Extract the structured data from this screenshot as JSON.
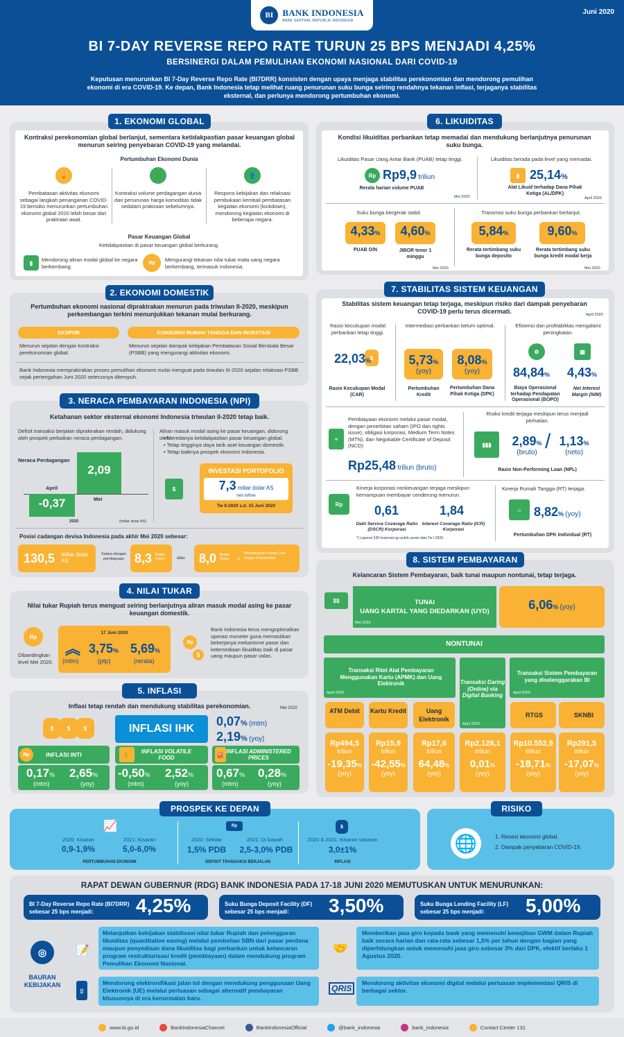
{
  "header": {
    "logo": "BANK INDONESIA",
    "logo_sub": "BANK SENTRAL REPUBLIK INDONESIA",
    "date": "Juni 2020",
    "title": "BI 7-DAY REVERSE REPO RATE TURUN 25 BPS MENJADI 4,25%",
    "subtitle": "BERSINERGI DALAM PEMULIHAN EKONOMI NASIONAL DARI COVID-19",
    "desc": "Keputusan menurunkan BI 7-Day Reverse Repo Rate (BI7DRR) konsisten dengan upaya menjaga stabilitas perekonomian dan mendorong pemulihan ekonomi di era COVID-19. Ke depan, Bank Indonesia tetap melihat ruang penurunan suku bunga seiring rendahnya tekanan inflasi, terjaganya stabilitas eksternal, dan perlunya mendorong pertumbuhan ekonomi."
  },
  "s1": {
    "title": "1. EKONOMI GLOBAL",
    "intro": "Kontraksi perekonomian global berlanjut, sementara ketidakpastian pasar keuangan global menurun seiring penyebaran COVID-19 yang melandai.",
    "sub1": "Pertumbuhan Ekonomi Dunia",
    "c1": "Pembatasan aktivitas ekonomi sebagai langkah penanganan COVID-19 berisiko menurunkan pertumbuhan ekonomi global 2020 lebih besar dari prakiraan awal.",
    "c2": "Kontraksi volume perdagangan dunia dan penurunan harga komoditas tidak sedalam prakiraan sebelumnya.",
    "c3": "Respons kebijakan dan relaksasi pembukaan kembali pembatasan kegiatan ekonomi (lockdown), mendorong kegiatan ekonomi di beberapa negara.",
    "sub2": "Pasar Keuangan Global",
    "sub2b": "Ketidakpastian di pasar keuangan global berkurang.",
    "m1": "Mendorong aliran modal global ke negara berkembang.",
    "m2": "Mengurangi tekanan nilai tukar mata uang negara berkembang, termasuk Indonesia."
  },
  "s2": {
    "title": "2. EKONOMI DOMESTIK",
    "intro": "Pertumbuhan ekonomi nasional diprakirakan menurun pada triwulan II-2020, meskipun perkembangan terkini menunjukkan tekanan mulai berkurang.",
    "l1": "EKSPOR",
    "l2": "KONSUMSI RUMAH TANGGA DAN INVESTASI",
    "t1": "Menurun sejalan dengan kontraksi perekonomian global.",
    "t2": "Menurun sejalan dampak kebijakan Pembatasan Sosial Berskala Besar (PSBB) yang mengurangi aktivitas ekonomi.",
    "note": "Bank Indonesia memprakirakan proses pemulihan ekonomi mulai menguat pada triwulan III-2020 sejalan relaksasi PSBB sejak pertengahan Juni 2020 seterusnya ditempuh."
  },
  "s3": {
    "title": "3. NERACA PEMBAYARAN INDONESIA (NPI)",
    "intro": "Ketahanan sektor eksternal ekonomi Indonesia triwulan II-2020 tetap baik.",
    "left": "Defisit transaksi berjalan diprakirakan rendah, didukung oleh prospek perbaikan neraca perdagangan.",
    "neraca": "Neraca Perdagangan",
    "apr": "April",
    "mei": "Mei",
    "v_apr": "-0,37",
    "v_mei": "2,09",
    "yr": "2020",
    "unit": "(miliar dolar AS)",
    "right_head": "Aliran masuk modal asing ke pasar keuangan, didorong oleh:",
    "r1": "Meredanya ketidakpastian pasar keuangan global.",
    "r2": "Tetap tingginya daya tarik aset keuangan domestik.",
    "r3": "Tetap baiknya prospek ekonomi Indonesia.",
    "pf_title": "INVESTASI PORTOFOLIO",
    "pf_val": "7,3",
    "pf_unit": "miliar dolar AS",
    "pf_sub": "net inflow",
    "pf_period": "Tw II-2020 s.d. 15 Juni 2020",
    "res_head": "Posisi cadangan devisa Indonesia pada akhir Mei 2020 sebesar:",
    "res1": "130,5",
    "res1u": "miliar dolar AS",
    "eq": "Setara dengan pembiayaan",
    "res2": "8,3",
    "res2u": "Bulan Impor",
    "atau": "atau",
    "res3": "8,0",
    "res3u": "Bulan Impor",
    "plus": "+",
    "debt": "Pembayaran Utang Luar Negeri Pemerintah"
  },
  "s4": {
    "title": "4. NILAI TUKAR",
    "intro": "Nilai tukar Rupiah terus menguat seiring berlanjutnya aliran masuk modal asing ke pasar keuangan domestik.",
    "cmp": "Dibandingkan level Mei 2020.",
    "date": "17 Juni 2020",
    "mtm": "(mtm)",
    "v1": "3,75",
    "p1": "(ptp)",
    "v2": "5,69",
    "p2": "(rerata)",
    "right": "Bank Indonesia terus mengoptimalkan operasi moneter guna memastikan bekerjanya mekanisme pasar dan ketersediaan likuiditas baik di pasar uang maupun pasar valas."
  },
  "s5": {
    "title": "5. INFLASI",
    "intro": "Inflasi tetap rendah dan mendukung stabilitas perekonomian.",
    "date": "Mei 2020",
    "ihk": "INFLASI IHK",
    "ihk1": "0,07",
    "ihk1u": "(mtm)",
    "ihk2": "2,19",
    "ihk2u": "(yoy)",
    "k1": "INFLASI INTI",
    "k2": "INFLASI VOLATILE FOOD",
    "k3": "INFLASI ADMINISTERED PRICES",
    "a1": "0,17",
    "b1": "2,65",
    "a2": "-0,50",
    "b2": "2,52",
    "a3": "0,67",
    "b3": "0,28",
    "mtm": "(mtm)",
    "yoy": "(yoy)"
  },
  "s6": {
    "title": "6. LIKUIDITAS",
    "intro": "Kondisi likuiditas perbankan tetap memadai dan mendukung berlanjutnya penurunan suku bunga.",
    "t1": "Likuiditas Pasar Uang Antar Bank (PUAB) tetap tinggi.",
    "v1": "Rp9,9",
    "v1u": "triliun",
    "v1l": "Rerata harian volume PUAB",
    "d1": "Mei 2020",
    "t2": "Likuiditas berada pada level yang memadai.",
    "v2": "25,14",
    "v2l": "Alat Likuid terhadap Dana Pihak Ketiga (AL/DPK)",
    "d2": "April 2020",
    "t3": "Suku bunga bergerak stabil.",
    "t4": "Transmisi suku bunga perbankan berlanjut.",
    "r1": "4,33",
    "r1l": "PUAB O/N",
    "r2": "4,60",
    "r2l": "JIBOR tenor 1 minggu",
    "r3": "5,84",
    "r3l": "Rerata tertimbang suku bunga deposito",
    "r4": "9,60",
    "r4l": "Rerata tertimbang suku bunga kredit modal kerja",
    "d3": "Mei 2020"
  },
  "s7": {
    "title": "7. STABILITAS SISTEM KEUANGAN",
    "intro": "Stabilitas sistem keuangan tetap terjaga, meskipun risiko dari dampak penyebaran COVID-19 perlu terus dicermati.",
    "date": "April 2020",
    "h1": "Rasio kecukupan modal perbankan tetap tinggi.",
    "h2": "Intermediasi perbankan belum optimal.",
    "h3": "Efisiensi dan profitabilitas mengalami peningkatan.",
    "car": "22,03",
    "carl": "Rasio Kecukupan Modal (CAR)",
    "kr": "5,73",
    "krl": "Pertumbuhan Kredit",
    "dpk": "8,08",
    "dpkl": "Pertumbuhan Dana Pihak Ketiga (DPK)",
    "yoy": "(yoy)",
    "bopo": "84,84",
    "bopol": "Biaya Operasional terhadap Pendapatan Operasional (BOPO)",
    "nim": "4,43",
    "niml": "Net Interest Margin (NIM)",
    "pem": "Pembiayaan ekonomi melalui pasar modal, dengan penerbitan saham (IPO dan rights issue), obligasi korporasi, Medium Term Notes (MTN), dan Negotiable Certificate of Deposit (NCD):",
    "pemv": "Rp25,48",
    "pemu": "triliun (bruto)",
    "npl_h": "Risiko kredit terjaga meskipun terus menjadi perhatian.",
    "npl1": "2,89",
    "npl1u": "(bruto)",
    "npl2": "1,13",
    "npl2u": "(neto)",
    "npll": "Rasio Non-Performing Loan (NPL)",
    "kk": "Kinerja korporasi nonkeuangan terjaga meskipun kemampuan membayar cenderung menurun.",
    "dscr": "0,61",
    "dscrl": "Debt Service Coverage Ratio (DSCR) Korporasi",
    "icr": "1,84",
    "icrl": "Interest Coverage Ratio (ICR) Korporasi",
    "foot": "*) Laporan 530 korporasi go public posisi data Tw I-2020.",
    "rt": "Kinerja Rumah Tangga (RT) terjaga.",
    "rtv": "8,82",
    "rtu": "(yoy)",
    "rtl": "Pertumbuhan DPK Individual (RT)"
  },
  "s8": {
    "title": "8. SISTEM PEMBAYARAN",
    "intro": "Kelancaran Sistem Pembayaran, baik tunai maupun nontunai, tetap terjaga.",
    "tunai": "TUNAI",
    "uyd": "UANG KARTAL YANG DIEDARKAN (UYD)",
    "mei": "Mei 2020",
    "uydv": "6,06",
    "yoy": "(yoy)",
    "nontunai": "NONTUNAI",
    "g1": "Transaksi Ritel Alat Pembayaran Menggunakan Kartu (APMK) dan Uang Elektronik",
    "g2": "Transaksi Daring (Online) via Digital Banking",
    "g3": "Transaksi Sistem Pembayaran yang diselenggarakan BI",
    "apr": "April 2020",
    "cols": [
      {
        "l": "ATM Debit",
        "v": "Rp494,5",
        "g": "-19,35"
      },
      {
        "l": "Kartu Kredit",
        "v": "Rp15,9",
        "g": "-42,55"
      },
      {
        "l": "Uang Elektronik",
        "v": "Rp17,6",
        "g": "64,48"
      },
      {
        "l": "",
        "v": "Rp2.128,1",
        "g": "0,01"
      },
      {
        "l": "RTGS",
        "v": "Rp10.552,9",
        "g": "-18,71"
      },
      {
        "l": "SKNBI",
        "v": "Rp291,5",
        "g": "-17,07"
      }
    ],
    "triliun": "triliun"
  },
  "prospek": {
    "title": "PROSPEK KE DEPAN",
    "a": "2020: Kisaran",
    "av": "0,9-1,9%",
    "b": "2021: Kisaran",
    "bv": "5,0-6,0%",
    "ab": "PERTUMBUHAN EKONOMI",
    "c": "2020: Sekitar",
    "cv": "1,5% PDB",
    "d": "2021: Di bawah",
    "dv": "2,5-3,0% PDB",
    "cd": "DEFISIT TRANSAKSI BERJALAN",
    "e": "2020 & 2021: Kisaran sasaran",
    "ev": "3,0±1%",
    "el": "INFLASI"
  },
  "risiko": {
    "title": "RISIKO",
    "r1": "1. Resesi ekonomi global.",
    "r2": "2. Dampak penyebaran COVID-19."
  },
  "rdg": {
    "title": "RAPAT DEWAN GUBERNUR (RDG) BANK INDONESIA PADA 17-18 JUNI 2020 MEMUTUSKAN UNTUK MENURUNKAN:",
    "b1l": "BI 7-Day Reverse Repo Rate (BI7DRR) sebesar 25 bps menjadi:",
    "b1v": "4,25%",
    "b2l": "Suku Bunga Deposit Facility (DF) sebesar 25 bps menjadi:",
    "b2v": "3,50%",
    "b3l": "Suku Bunga Lending Facility (LF) sebesar 25 bps menjadi:",
    "b3v": "5,00%",
    "bauran": "BAURAN KEBIJAKAN",
    "p1": "Melanjutkan kebijakan stabilisasi nilai tukar Rupiah dan pelonggaran likuiditas (quantitative easing) melalui pembelian SBN dari pasar perdana maupun penyediaan dana likuiditas bagi perbankan untuk kelancaran program restrukturisasi kredit (pembiayaan) dalam mendukung program Pemulihan Ekonomi Nasional.",
    "p2": "Memberikan jasa giro kepada bank yang memenuhi kewajiban GWM dalam Rupiah baik secara harian dan rata-rata sebesar 1,5% per tahun dengan bagian yang diperhitungkan untuk memenuhi jasa giro sebesar 3% dari DPK, efektif berlaku 1 Agustus 2020.",
    "p3": "Mendorong elektronifikasi jalan tol dengan mendukung penggunaan Uang Elektronik (UE) melalui perluasan sebagai alternatif pembayaran khususnya di era kenormalan baru.",
    "qris": "QRIS",
    "p4": "Mendorong aktivitas ekonomi digital melalui perluasan implementasi QRIS di berbagai sektor."
  },
  "footer": {
    "web": "www.bi.go.id",
    "yt": "BankIndonesiaChannel",
    "fb": "BankIndonesiaOfficial",
    "tw": "@bank_indonesia",
    "ig": "bank_indonesia",
    "cc": "Contact Center 131"
  }
}
